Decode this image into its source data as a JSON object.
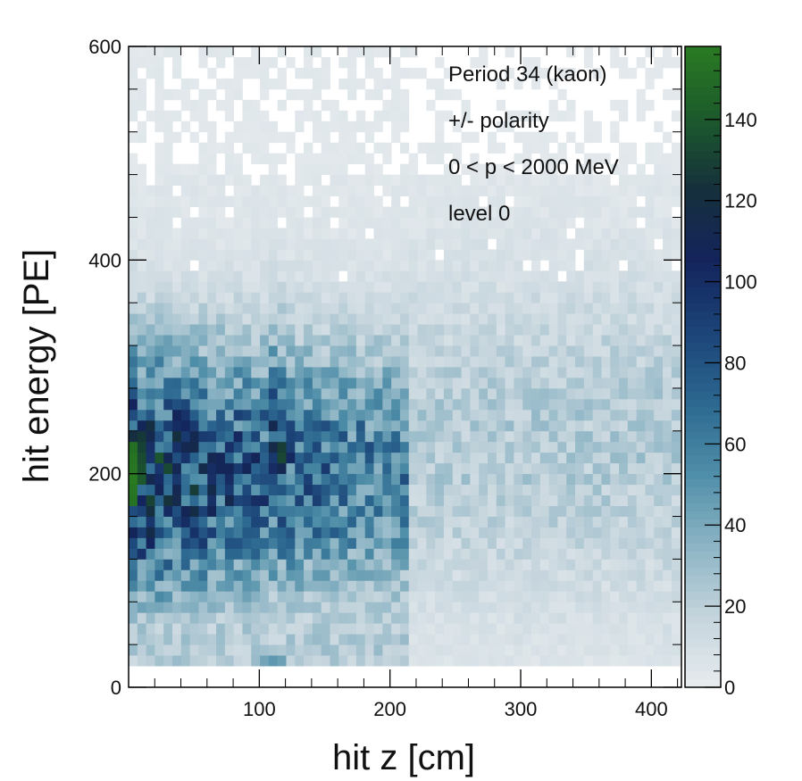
{
  "chart_data": {
    "type": "heatmap",
    "title": "",
    "xlabel": "hit z [cm]",
    "ylabel": "hit energy [PE]",
    "xlim": [
      0,
      423
    ],
    "ylim": [
      0,
      600
    ],
    "x_ticks": [
      100,
      200,
      300,
      400
    ],
    "y_ticks": [
      0,
      200,
      400,
      600
    ],
    "x_tick_labels": [
      "100",
      "200",
      "300",
      "400"
    ],
    "y_tick_labels": [
      "0",
      "200",
      "400",
      "600"
    ],
    "z_range": [
      0,
      158
    ],
    "z_ticks": [
      0,
      20,
      40,
      60,
      80,
      100,
      120,
      140
    ],
    "z_tick_labels": [
      "0",
      "20",
      "40",
      "60",
      "80",
      "100",
      "120",
      "140"
    ],
    "bins": {
      "nx": 63,
      "ny": 60,
      "x_bin_width": 6.7,
      "y_bin_width": 10,
      "y_min_filled": 20
    },
    "colormap": [
      "#e8ecef",
      "#c4d4dc",
      "#8cb4c4",
      "#4f8ea8",
      "#2c6890",
      "#1c4478",
      "#14245c",
      "#16303c",
      "#1c5a2c",
      "#2a7a22"
    ],
    "peak": {
      "x": 3,
      "y": 195,
      "value": 158
    },
    "annotations": [
      "Period 34 (kaon)",
      "+/- polarity",
      "0 < p < 2000 MeV",
      "level 0"
    ],
    "grid": false,
    "legend": "none"
  }
}
